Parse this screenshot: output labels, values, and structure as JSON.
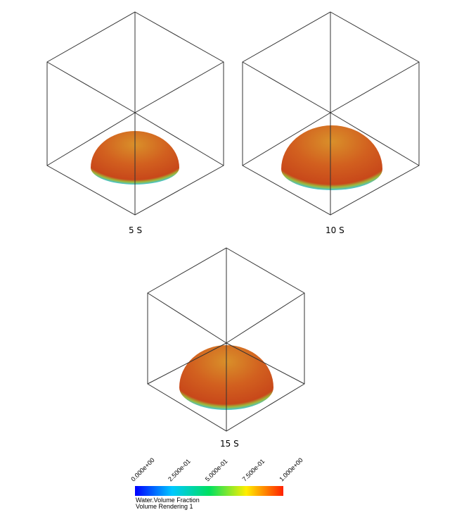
{
  "panels": [
    {
      "label": "5 S"
    },
    {
      "label": "10 S"
    },
    {
      "label": "15 S"
    }
  ],
  "colorbar": {
    "ticks": [
      "0.000e+00",
      "2.500e-01",
      "5.000e-01",
      "7.500e-01",
      "1.000e+00"
    ],
    "title": "Water.Volume Fraction",
    "subtitle": "Volume Rendering 1"
  }
}
